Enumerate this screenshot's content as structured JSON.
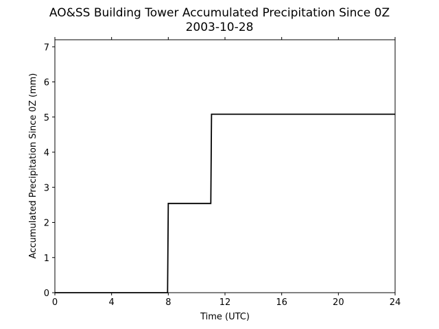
{
  "chart_data": {
    "type": "line",
    "title": "AO&SS Building Tower Accumulated Precipitation Since 0Z",
    "subtitle": "2003-10-28",
    "xlabel": "Time (UTC)",
    "ylabel": "Accumulated Precipitation Since 0Z (mm)",
    "xlim": [
      0,
      24
    ],
    "ylim": [
      0,
      7.2
    ],
    "xticks": [
      0,
      4,
      8,
      12,
      16,
      20,
      24
    ],
    "yticks": [
      0,
      1,
      2,
      3,
      4,
      5,
      6,
      7
    ],
    "grid": false,
    "line_color": "#000000",
    "series": [
      {
        "x": [
          0,
          7.95,
          8.0,
          11.0,
          11.05,
          24
        ],
        "y": [
          0,
          0,
          2.54,
          2.54,
          5.08,
          5.08
        ]
      }
    ]
  }
}
